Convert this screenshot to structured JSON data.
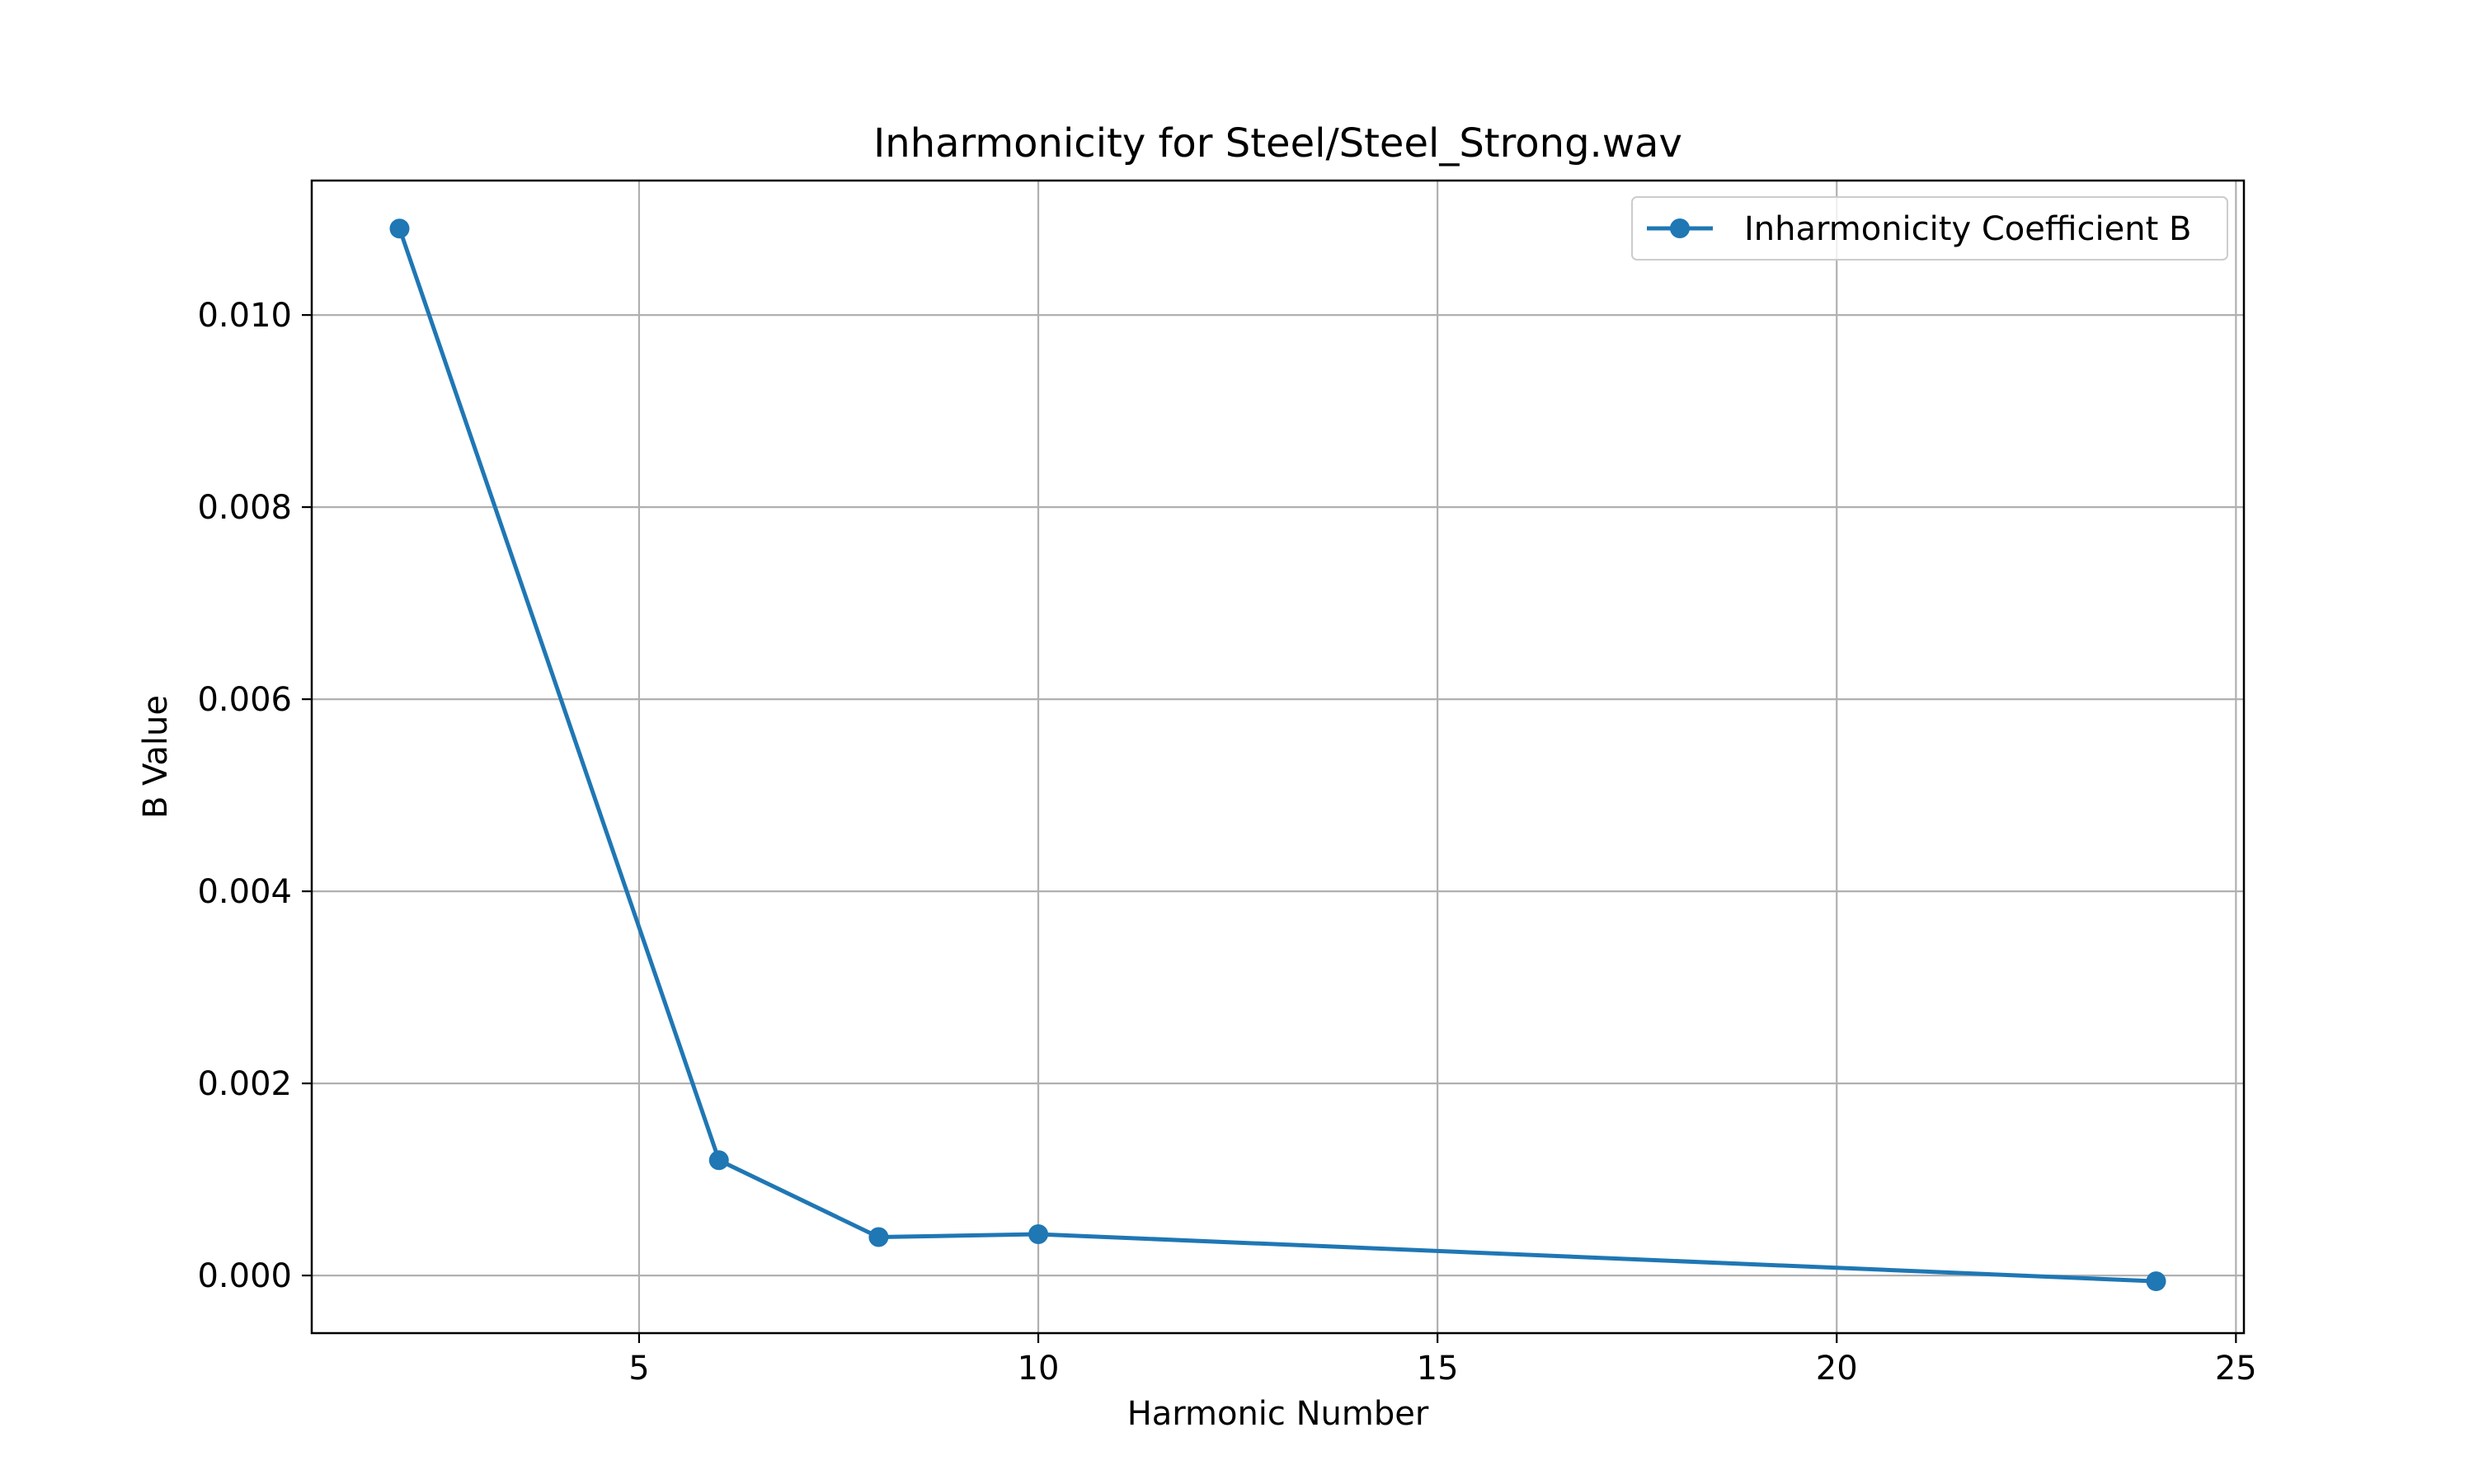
{
  "chart_data": {
    "type": "line",
    "title": "Inharmonicity for Steel/Steel_Strong.wav",
    "xlabel": "Harmonic Number",
    "ylabel": "B Value",
    "xlim": [
      0.9,
      25.1
    ],
    "ylim": [
      -0.0006,
      0.0114
    ],
    "x_ticks": [
      5,
      10,
      15,
      20,
      25
    ],
    "x_tick_labels": [
      "5",
      "10",
      "15",
      "20",
      "25"
    ],
    "y_ticks": [
      0.0,
      0.002,
      0.004,
      0.006,
      0.008,
      0.01
    ],
    "y_tick_labels": [
      "0.000",
      "0.002",
      "0.004",
      "0.006",
      "0.008",
      "0.010"
    ],
    "grid": true,
    "legend_position": "top-right",
    "series": [
      {
        "name": "Inharmonicity Coefficient B",
        "color": "#1f77b4",
        "marker": "circle",
        "x": [
          2,
          6,
          8,
          10,
          24
        ],
        "y": [
          0.0109,
          0.0012,
          0.0004,
          0.00043,
          -6e-05
        ]
      }
    ]
  }
}
